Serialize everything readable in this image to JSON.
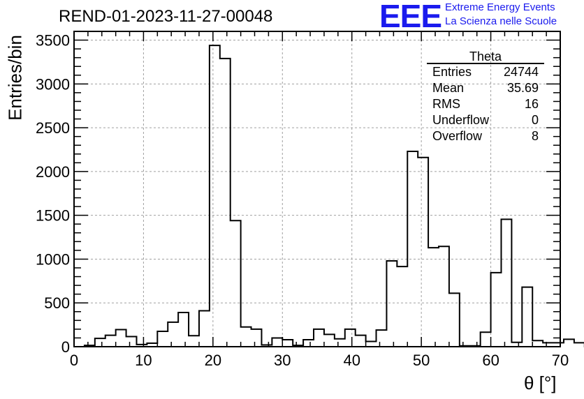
{
  "header": {
    "run_title": "REND-01-2023-11-27-00048",
    "logo_text": "EEE",
    "org_line1": "Extreme Energy Events",
    "org_line2": "La Scienza nelle Scuole"
  },
  "stats_box": {
    "title": "Theta",
    "rows": [
      {
        "label": "Entries",
        "value": "24744"
      },
      {
        "label": "Mean",
        "value": "35.69"
      },
      {
        "label": "RMS",
        "value": "16"
      },
      {
        "label": "Underflow",
        "value": "0"
      },
      {
        "label": "Overflow",
        "value": "8"
      }
    ]
  },
  "colors": {
    "accent": "#1a1aee",
    "grid": "#a0a0a0",
    "line": "#000000"
  },
  "chart_data": {
    "type": "bar",
    "style": "step-histogram",
    "xlabel": "θ [°]",
    "ylabel": "Entries/bin",
    "xlim": [
      0,
      70
    ],
    "ylim": [
      0,
      3600
    ],
    "xticks": [
      0,
      10,
      20,
      30,
      40,
      50,
      60,
      70
    ],
    "yticks": [
      0,
      500,
      1000,
      1500,
      2000,
      2500,
      3000,
      3500
    ],
    "grid": true,
    "bin_width": 1.5,
    "bin_start": 0,
    "values": [
      0,
      15,
      95,
      130,
      195,
      115,
      25,
      40,
      175,
      280,
      390,
      125,
      410,
      3440,
      3290,
      1440,
      225,
      200,
      20,
      100,
      80,
      15,
      80,
      200,
      140,
      90,
      200,
      130,
      60,
      190,
      980,
      915,
      2230,
      2160,
      1130,
      1145,
      610,
      10,
      10,
      165,
      845,
      1455,
      50,
      680,
      70,
      45,
      45,
      85,
      45,
      0
    ]
  }
}
